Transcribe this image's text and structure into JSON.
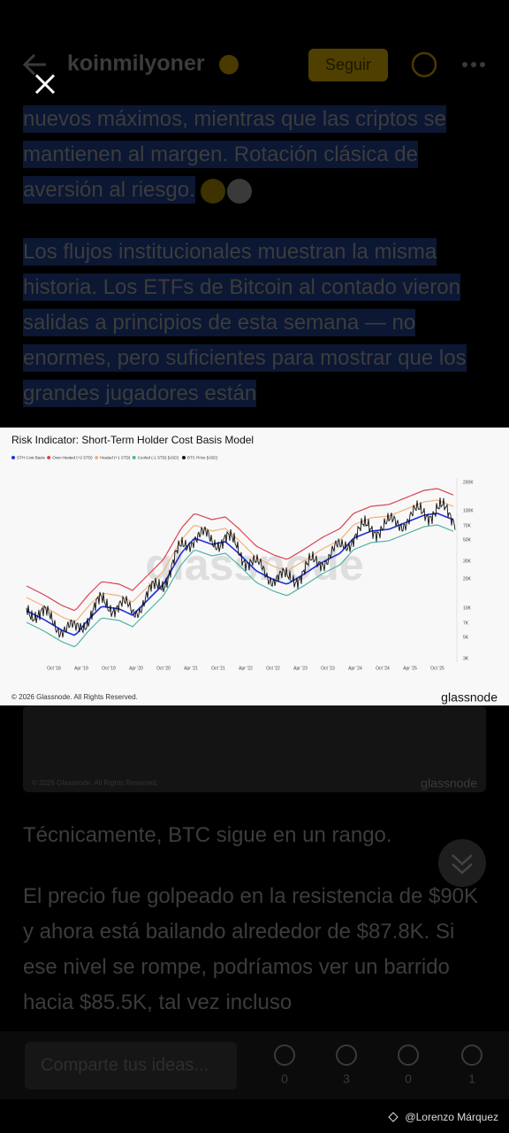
{
  "header": {
    "username": "koinmilyoner",
    "follow": "Seguir"
  },
  "post": {
    "paragraphs": [
      "nuevos máximos, mientras que las criptos se mantienen al margen. Rotación clásica de aversión al riesgo.",
      "Los flujos institucionales muestran la misma historia. Los ETFs de Bitcoin al contado vieron salidas a principios de esta semana — no enormes, pero suficientes para mostrar que los grandes jugadores están",
      "Técnicamente, BTC sigue en un rango.",
      "El precio fue golpeado en la resistencia de $90K y ahora está bailando alrededor de $87.8K. Si ese nivel se rompe, podríamos ver un barrido hacia $85.5K, tal vez incluso"
    ]
  },
  "chart_image": {
    "title": "Risk Indicator: Short-Term Holder Cost Basis Model",
    "legend": [
      {
        "name": "STH Cost Basis",
        "color": "#1f2fd6"
      },
      {
        "name": "Over-Heated (+2 STD)",
        "color": "#d9434f"
      },
      {
        "name": "Heated (+1 STD)",
        "color": "#f0b27a"
      },
      {
        "name": "Cooled (-1 STD) [USD]",
        "color": "#4fb3a8"
      },
      {
        "name": "BTC Price [USD]",
        "color": "#111111"
      }
    ],
    "yticks": [
      "200K",
      "100K",
      "70K",
      "50K",
      "30K",
      "20K",
      "10K",
      "7K",
      "5K",
      "3K"
    ],
    "xticks": [
      "Oct '18",
      "Apr '19",
      "Oct '19",
      "Apr '20",
      "Oct '20",
      "Apr '21",
      "Oct '21",
      "Apr '22",
      "Oct '22",
      "Apr '23",
      "Oct '23",
      "Apr '24",
      "Oct '24",
      "Apr '25",
      "Oct '25"
    ],
    "watermark": "glassnode",
    "copyright": "© 2026 Glassnode. All Rights Reserved.",
    "brand": "glassnode"
  },
  "actions": {
    "comment_placeholder": "Comparte tus ideas...",
    "counts": [
      "0",
      "3",
      "0",
      "1"
    ]
  },
  "credit": "@Lorenzo Márquez"
}
